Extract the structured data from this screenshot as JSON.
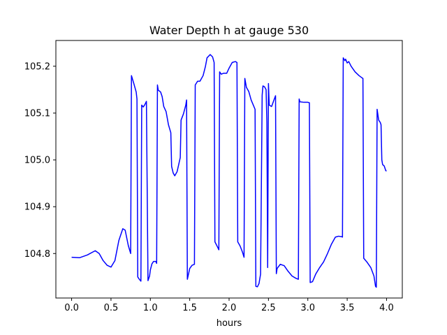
{
  "chart_data": {
    "type": "line",
    "title": "Water Depth h at gauge 530",
    "xlabel": "hours",
    "ylabel": "",
    "xlim": [
      -0.2,
      4.2
    ],
    "ylim": [
      104.705,
      105.255
    ],
    "xticks": [
      0.0,
      0.5,
      1.0,
      1.5,
      2.0,
      2.5,
      3.0,
      3.5,
      4.0
    ],
    "xtick_labels": [
      "0.0",
      "0.5",
      "1.0",
      "1.5",
      "2.0",
      "2.5",
      "3.0",
      "3.5",
      "4.0"
    ],
    "yticks": [
      104.8,
      104.9,
      105.0,
      105.1,
      105.2
    ],
    "ytick_labels": [
      "104.8",
      "104.9",
      "105.0",
      "105.1",
      "105.2"
    ],
    "grid": false,
    "legend": "none",
    "series": [
      {
        "color": "#0000ff",
        "x": [
          0.0,
          0.1,
          0.2,
          0.3,
          0.35,
          0.4,
          0.45,
          0.5,
          0.55,
          0.6,
          0.65,
          0.68,
          0.72,
          0.75,
          0.76,
          0.79,
          0.82,
          0.83,
          0.84,
          0.86,
          0.88,
          0.89,
          0.91,
          0.93,
          0.95,
          0.97,
          0.99,
          1.0,
          1.02,
          1.04,
          1.07,
          1.08,
          1.09,
          1.1,
          1.13,
          1.15,
          1.17,
          1.2,
          1.23,
          1.26,
          1.27,
          1.29,
          1.31,
          1.34,
          1.36,
          1.38,
          1.39,
          1.42,
          1.45,
          1.46,
          1.47,
          1.5,
          1.53,
          1.56,
          1.57,
          1.6,
          1.63,
          1.67,
          1.7,
          1.72,
          1.76,
          1.79,
          1.81,
          1.82,
          1.85,
          1.87,
          1.88,
          1.9,
          1.93,
          1.97,
          2.0,
          2.04,
          2.08,
          2.1,
          2.11,
          2.14,
          2.17,
          2.19,
          2.2,
          2.22,
          2.25,
          2.28,
          2.3,
          2.33,
          2.34,
          2.36,
          2.38,
          2.4,
          2.42,
          2.43,
          2.45,
          2.47,
          2.48,
          2.49,
          2.5,
          2.51,
          2.54,
          2.57,
          2.59,
          2.6,
          2.61,
          2.65,
          2.7,
          2.75,
          2.8,
          2.85,
          2.88,
          2.89,
          2.9,
          2.95,
          3.0,
          3.02,
          3.03,
          3.06,
          3.1,
          3.15,
          3.2,
          3.25,
          3.3,
          3.35,
          3.39,
          3.43,
          3.44,
          3.45,
          3.47,
          3.48,
          3.5,
          3.52,
          3.55,
          3.6,
          3.65,
          3.69,
          3.7,
          3.71,
          3.75,
          3.8,
          3.84,
          3.86,
          3.87,
          3.88,
          3.9,
          3.92,
          3.93,
          3.94,
          3.95,
          3.97,
          3.99,
          4.0
        ],
        "y": [
          104.792,
          104.791,
          104.797,
          104.806,
          104.8,
          104.785,
          104.775,
          104.771,
          104.785,
          104.828,
          104.853,
          104.85,
          104.817,
          104.8,
          105.18,
          105.163,
          105.145,
          105.13,
          104.75,
          104.745,
          104.741,
          105.117,
          105.113,
          105.118,
          105.125,
          104.742,
          104.752,
          104.765,
          104.778,
          104.783,
          104.783,
          104.779,
          105.16,
          105.149,
          105.145,
          105.135,
          105.114,
          105.103,
          105.075,
          105.058,
          104.986,
          104.972,
          104.966,
          104.975,
          104.99,
          105.005,
          105.085,
          105.098,
          105.117,
          105.128,
          104.745,
          104.768,
          104.775,
          104.777,
          105.16,
          105.168,
          105.168,
          105.18,
          105.2,
          105.218,
          105.225,
          105.22,
          105.208,
          104.825,
          104.815,
          104.808,
          105.188,
          105.183,
          105.185,
          105.185,
          105.196,
          105.208,
          105.21,
          105.208,
          104.825,
          104.816,
          104.803,
          104.792,
          105.174,
          105.155,
          105.146,
          105.128,
          105.12,
          105.108,
          104.73,
          104.729,
          104.736,
          104.756,
          105.138,
          105.158,
          105.156,
          105.15,
          105.08,
          104.77,
          105.163,
          105.117,
          105.114,
          105.128,
          105.137,
          104.757,
          104.768,
          104.777,
          104.774,
          104.762,
          104.752,
          104.747,
          104.745,
          105.13,
          105.124,
          105.123,
          105.123,
          105.122,
          104.738,
          104.74,
          104.756,
          104.77,
          104.782,
          104.8,
          104.82,
          104.835,
          104.837,
          104.836,
          104.835,
          105.218,
          105.212,
          105.215,
          105.207,
          105.21,
          105.2,
          105.188,
          105.18,
          105.175,
          105.174,
          104.79,
          104.782,
          104.77,
          104.752,
          104.73,
          104.728,
          105.108,
          105.085,
          105.08,
          105.075,
          105.0,
          104.99,
          104.987,
          104.977,
          104.976
        ]
      }
    ]
  }
}
